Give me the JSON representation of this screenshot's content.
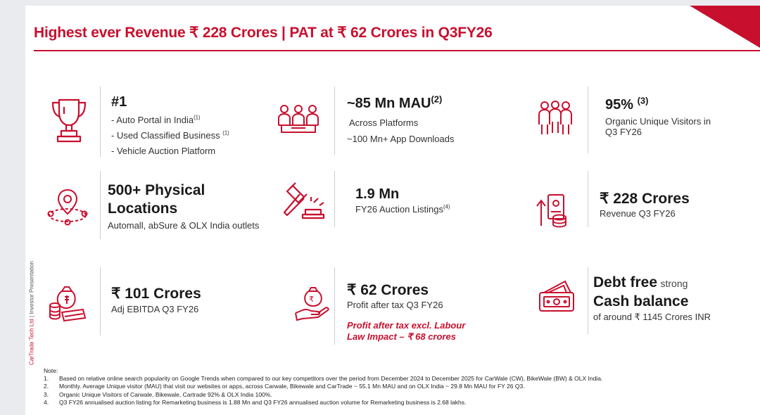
{
  "title": "Highest ever Revenue ₹ 228 Crores | PAT at ₹ 62 Crores in Q3FY26",
  "colors": {
    "accent": "#c8102e",
    "text": "#1a1a1a",
    "divider": "#cfcfcf"
  },
  "sidebar": {
    "company": "CarTrade Tech Ltd",
    "separator": "|",
    "doc": "Investor Presentation"
  },
  "cards": {
    "rank": {
      "icon": "trophy-icon",
      "headline": "#1",
      "bullets": [
        "- Auto Portal in India",
        "- Used Classified Business",
        "- Vehicle Auction Platform"
      ],
      "markers": [
        "(1)",
        "(1)"
      ]
    },
    "mau": {
      "icon": "audience-icon",
      "headline": "~85 Mn MAU",
      "marker": "(2)",
      "line1": "Across Platforms",
      "line2": "~100 Mn+ App Downloads"
    },
    "organic": {
      "icon": "people-group-icon",
      "headline": "95%",
      "marker": "(3)",
      "line1": "Organic Unique Visitors in",
      "line2": "Q3 FY26"
    },
    "locations": {
      "icon": "location-pin-icon",
      "line1": "500+ Physical",
      "line2": "Locations",
      "sub": "Automall, abSure & OLX India outlets"
    },
    "auction": {
      "icon": "gavel-icon",
      "headline": "1.9 Mn",
      "sub": "FY26 Auction Listings",
      "marker": "(4)"
    },
    "revenue": {
      "icon": "revenue-growth-icon",
      "headline": "₹ 228 Crores",
      "sub": "Revenue Q3 FY26"
    },
    "ebitda": {
      "icon": "money-bag-icon",
      "headline": "₹ 101 Crores",
      "sub": "Adj EBITDA Q3 FY26"
    },
    "pat": {
      "icon": "profit-hand-icon",
      "headline": "₹ 62 Crores",
      "sub": "Profit after tax Q3 FY26",
      "note1": "Profit after tax excl. Labour",
      "note2": "Law Impact – ₹ 68 crores"
    },
    "debt": {
      "icon": "wallet-cash-icon",
      "line1_bold": "Debt free",
      "line1_light": "strong",
      "line2": "Cash balance",
      "sub": "of around ₹ 1145 Crores INR"
    }
  },
  "notes": {
    "label": "Note:",
    "items": [
      {
        "num": "1.",
        "text": "Based on relative online search popularity on Google Trends when compared to our key competitors over the period from December 2024 to December 2025 for CarWale (CW),  BikeWale (BW) & OLX India."
      },
      {
        "num": "2.",
        "text": "Monthly. Average Unique visitor (MAU) that visit our websites or apps, across Carwale, Bikewale and CarTrade ~ 55.1 Mn MAU and on OLX India ~ 29.8 Mn MAU for FY 26 Q3."
      },
      {
        "num": "3.",
        "text": "Organic Unique Visitors of Carwale, Bikewale, Cartrade 92% & OLX India 100%."
      },
      {
        "num": "4.",
        "text": "Q3 FY26 annualised auction listing for Remarketing business is 1.88 Mn and Q3 FY26 annualised auction volume for Remarketing business is 2.68 lakhs."
      }
    ]
  }
}
